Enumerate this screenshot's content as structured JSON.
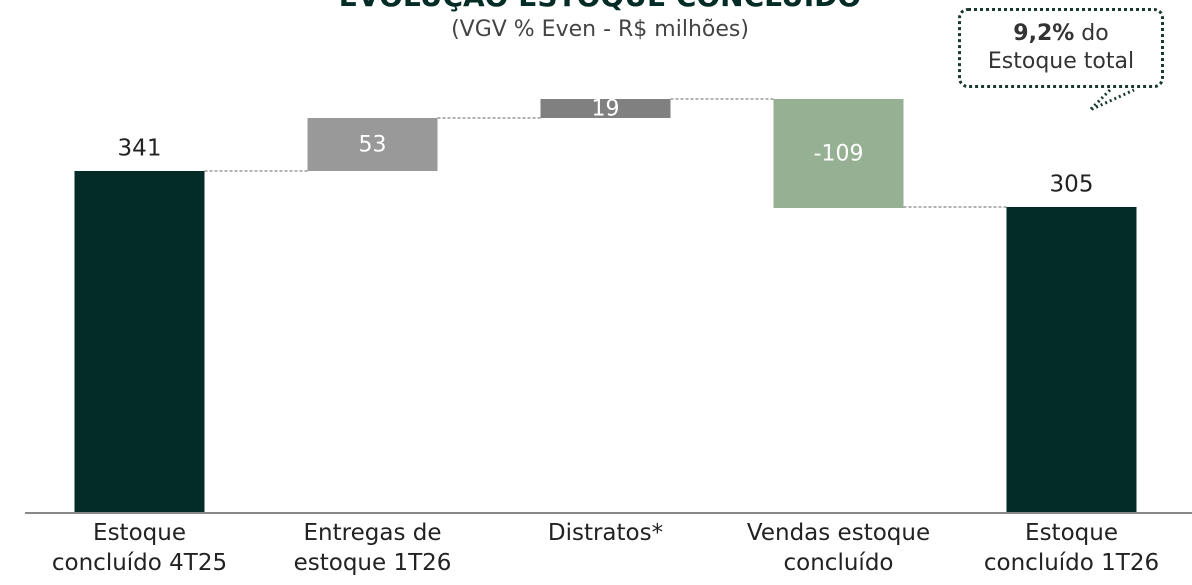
{
  "chart_data": {
    "type": "waterfall",
    "title": "EVOLUÇÃO ESTOQUE CONCLUÍDO",
    "subtitle": "(VGV % Even - R$ milhões)",
    "annotation": {
      "highlight": "9,2%",
      "text": " do",
      "text2": "Estoque total"
    },
    "categories": [
      "Estoque\nconcluído 4T25",
      "Entregas de\nestoque 1T26",
      "Distratos*",
      "Vendas estoque\nconcluído",
      "Estoque\nconcluído 1T26"
    ],
    "values": [
      341,
      53,
      19,
      -109,
      305
    ],
    "measures": [
      "total",
      "relative",
      "relative",
      "relative",
      "total"
    ],
    "colors": [
      "#022c25",
      "#999999",
      "#808080",
      "#95b093",
      "#022c25"
    ],
    "ylim": [
      0,
      420
    ]
  }
}
